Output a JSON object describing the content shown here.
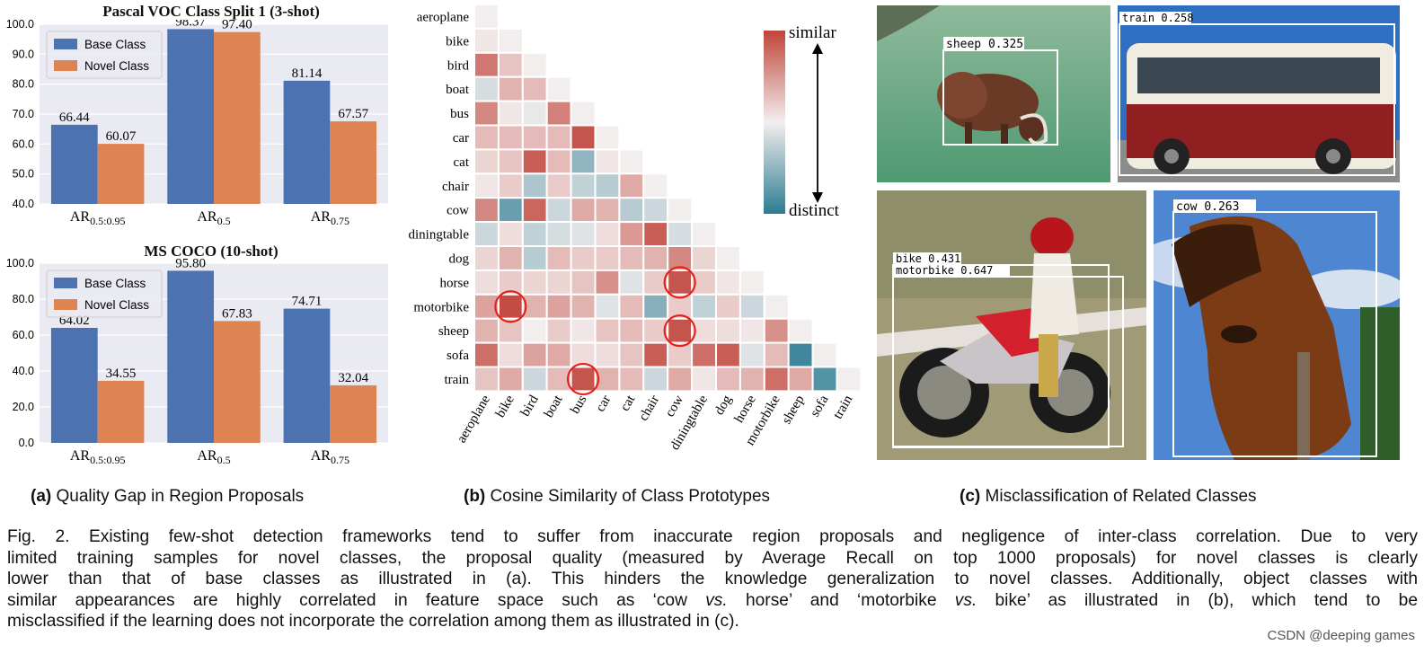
{
  "colors": {
    "base": "#4c72b0",
    "novel": "#dd8452",
    "plot_bg": "#eaeaf2",
    "similar": "#c0443a",
    "distinct": "#2c7c92"
  },
  "chart_data": [
    {
      "type": "bar",
      "title": "Pascal VOC Class Split 1 (3-shot)",
      "legend": [
        "Base Class",
        "Novel Class"
      ],
      "legend_placement": "top-left",
      "ylim": [
        40,
        100
      ],
      "yticks": [
        "40.0",
        "50.0",
        "60.0",
        "70.0",
        "80.0",
        "90.0",
        "100.0"
      ],
      "categories": [
        "AR0.5:0.95",
        "AR0.5",
        "AR0.75"
      ],
      "category_labels": [
        {
          "main": "AR",
          "sub": "0.5:0.95"
        },
        {
          "main": "AR",
          "sub": "0.5"
        },
        {
          "main": "AR",
          "sub": "0.75"
        }
      ],
      "series": [
        {
          "name": "Base Class",
          "values": [
            66.44,
            98.37,
            81.14
          ],
          "labels": [
            "66.44",
            "98.37",
            "81.14"
          ]
        },
        {
          "name": "Novel Class",
          "values": [
            60.07,
            97.4,
            67.57
          ],
          "labels": [
            "60.07",
            "97.40",
            "67.57"
          ]
        }
      ]
    },
    {
      "type": "bar",
      "title": "MS COCO (10-shot)",
      "legend": [
        "Base Class",
        "Novel Class"
      ],
      "legend_placement": "top-left",
      "ylim": [
        0,
        100
      ],
      "yticks": [
        "0.0",
        "20.0",
        "40.0",
        "60.0",
        "80.0",
        "100.0"
      ],
      "categories": [
        "AR0.5:0.95",
        "AR0.5",
        "AR0.75"
      ],
      "category_labels": [
        {
          "main": "AR",
          "sub": "0.5:0.95"
        },
        {
          "main": "AR",
          "sub": "0.5"
        },
        {
          "main": "AR",
          "sub": "0.75"
        }
      ],
      "series": [
        {
          "name": "Base Class",
          "values": [
            64.02,
            95.8,
            74.71
          ],
          "labels": [
            "64.02",
            "95.80",
            "74.71"
          ]
        },
        {
          "name": "Novel Class",
          "values": [
            34.55,
            67.83,
            32.04
          ],
          "labels": [
            "34.55",
            "67.83",
            "32.04"
          ]
        }
      ]
    },
    {
      "type": "heatmap",
      "classes": [
        "aeroplane",
        "bike",
        "bird",
        "boat",
        "bus",
        "car",
        "cat",
        "chair",
        "cow",
        "diningtable",
        "dog",
        "horse",
        "motorbike",
        "sheep",
        "sofa",
        "train"
      ],
      "colorbar": {
        "top": "similar",
        "bottom": "distinct"
      },
      "values": [
        [
          0.0
        ],
        [
          0.05,
          0.0
        ],
        [
          0.7,
          0.25,
          0.0
        ],
        [
          -0.15,
          0.35,
          0.3,
          0.0
        ],
        [
          0.6,
          0.05,
          -0.05,
          0.65,
          0.0
        ],
        [
          0.3,
          0.3,
          0.3,
          0.3,
          0.9,
          0.0
        ],
        [
          0.15,
          0.25,
          0.85,
          0.3,
          -0.5,
          0.05,
          0.0
        ],
        [
          0.05,
          0.2,
          -0.35,
          0.2,
          -0.25,
          -0.3,
          0.4,
          0.0
        ],
        [
          0.6,
          -0.7,
          0.8,
          -0.2,
          0.4,
          0.35,
          -0.3,
          -0.2,
          0.0
        ],
        [
          -0.2,
          0.1,
          -0.25,
          -0.15,
          -0.1,
          0.1,
          0.5,
          0.85,
          -0.15,
          0.0
        ],
        [
          0.15,
          0.35,
          -0.3,
          0.3,
          0.2,
          0.2,
          0.3,
          0.35,
          0.6,
          0.15,
          0.0
        ],
        [
          0.1,
          0.2,
          0.15,
          0.15,
          0.25,
          0.55,
          -0.1,
          0.2,
          0.9,
          0.2,
          0.05,
          0.0
        ],
        [
          0.45,
          0.95,
          0.35,
          0.45,
          0.35,
          -0.1,
          0.3,
          -0.55,
          0.2,
          -0.25,
          0.2,
          -0.2,
          0.0
        ],
        [
          0.35,
          0.25,
          0.0,
          0.2,
          0.05,
          0.25,
          0.3,
          0.2,
          0.9,
          0.1,
          0.1,
          0.05,
          0.55,
          0.0
        ],
        [
          0.75,
          0.1,
          0.45,
          0.4,
          0.1,
          0.1,
          0.25,
          0.85,
          0.2,
          0.75,
          0.85,
          -0.1,
          0.3,
          -0.9,
          0.0
        ],
        [
          0.25,
          0.4,
          -0.2,
          0.3,
          0.9,
          0.35,
          0.3,
          -0.2,
          0.4,
          0.05,
          0.3,
          0.35,
          0.75,
          0.4,
          -0.8,
          0.0
        ]
      ],
      "circled": [
        [
          12,
          1
        ],
        [
          11,
          8
        ],
        [
          13,
          8
        ],
        [
          15,
          4
        ]
      ]
    }
  ],
  "photos": [
    {
      "detections": [
        {
          "label": "sheep",
          "score": "0.325"
        }
      ]
    },
    {
      "detections": [
        {
          "label": "train",
          "score": "0.258"
        }
      ]
    },
    {
      "detections": [
        {
          "label": "bike",
          "score": "0.431"
        },
        {
          "label": "motorbike",
          "score": "0.647"
        }
      ]
    },
    {
      "detections": [
        {
          "label": "cow",
          "score": "0.263"
        }
      ]
    }
  ],
  "subcaptions": {
    "a": {
      "tag": "(a)",
      "text": "Quality Gap in Region Proposals"
    },
    "b": {
      "tag": "(b)",
      "text": "Cosine Similarity of Class Prototypes"
    },
    "c": {
      "tag": "(c)",
      "text": "Misclassification of Related Classes"
    }
  },
  "caption_lines": [
    "Fig. 2. Existing few-shot detection frameworks tend to suffer from inaccurate region proposals and negligence of inter-class correlation. Due to very",
    "limited training samples for novel classes, the proposal quality (measured by Average Recall on top 1000 proposals) for novel classes is clearly",
    "lower than that of base classes as illustrated in (a). This hinders the knowledge generalization to novel classes. Additionally, object classes with",
    "similar appearances are highly correlated in feature space such as ‘cow vs. horse’ and ‘motorbike vs. bike’ as illustrated in (b), which tend to be",
    "misclassified if the learning does not incorporate the correlation among them as illustrated in (c)."
  ],
  "watermark": "CSDN @deeping games"
}
